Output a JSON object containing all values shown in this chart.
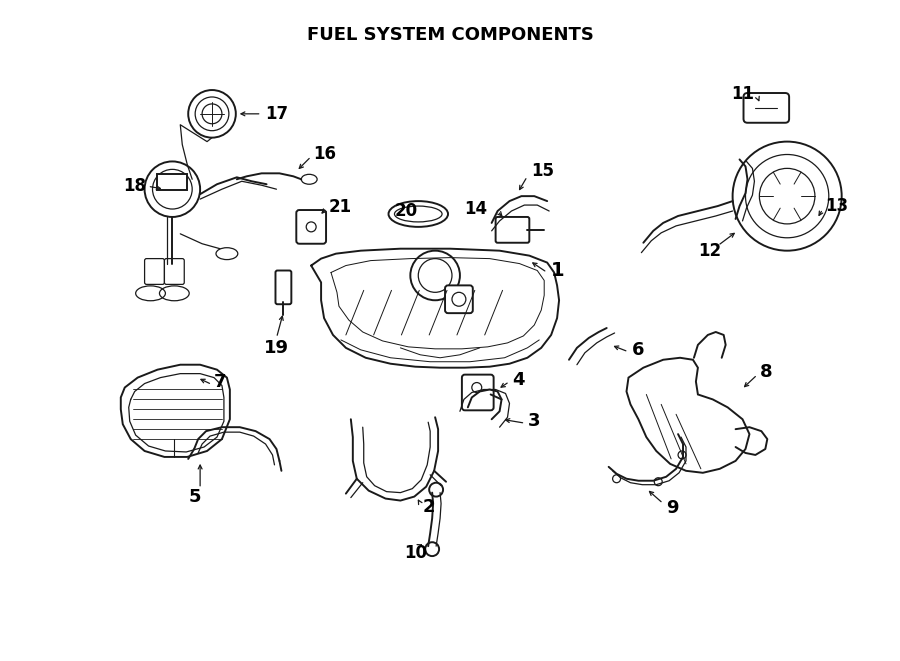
{
  "title": "FUEL SYSTEM COMPONENTS",
  "bg_color": "#ffffff",
  "line_color": "#1a1a1a",
  "text_color": "#000000",
  "fig_width": 9.0,
  "fig_height": 6.61,
  "dpi": 100
}
